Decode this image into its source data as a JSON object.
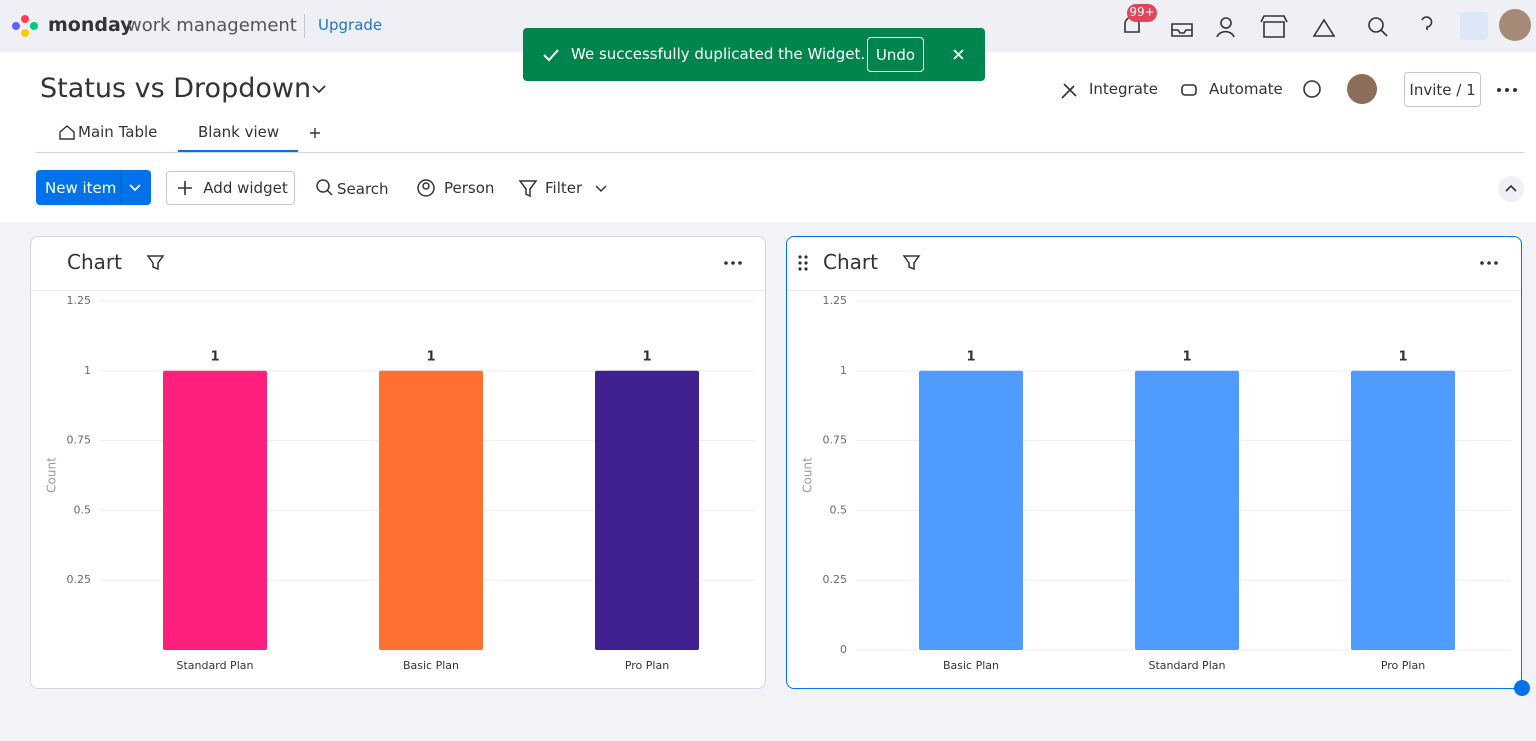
{
  "header": {
    "brand": "monday",
    "brand_sub": "work management",
    "upgrade": "Upgrade",
    "notifications": "99+"
  },
  "toast": {
    "message": "We successfully duplicated the Widget.",
    "action": "Undo"
  },
  "board": {
    "title": "Status vs Dropdown",
    "integrate": "Integrate",
    "automate": "Automate",
    "invite": "Invite / 1",
    "tabs": [
      "Main Table",
      "Blank view"
    ]
  },
  "toolbar": {
    "new_item": "New item",
    "add_widget": "Add widget",
    "search": "Search",
    "person": "Person",
    "filter": "Filter"
  },
  "chart_data": [
    {
      "type": "bar",
      "title": "Chart",
      "y_label": "Count",
      "categories": [
        "Standard Plan",
        "Basic Plan",
        "Pro Plan"
      ],
      "values": [
        1,
        1,
        1
      ],
      "colors": [
        "#ff1f7d",
        "#ff7131",
        "#40218f"
      ],
      "ylim": [
        0,
        1.25
      ],
      "yticks": [
        0.25,
        0.5,
        0.75,
        1,
        1.25
      ],
      "grid": true
    },
    {
      "type": "bar",
      "title": "Chart",
      "y_label": "Count",
      "categories": [
        "Basic Plan",
        "Standard Plan",
        "Pro Plan"
      ],
      "values": [
        1,
        1,
        1
      ],
      "color": "#4f9bff",
      "ylim": [
        0,
        1.25
      ],
      "yticks": [
        0,
        0.25,
        0.5,
        0.75,
        1,
        1.25
      ],
      "grid": true
    }
  ]
}
